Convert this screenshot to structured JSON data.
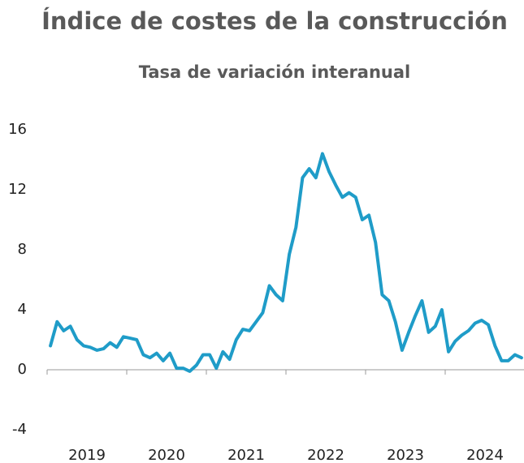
{
  "chart_data": {
    "type": "line",
    "title": "Índice de costes de la construcción",
    "subtitle": "Tasa de variación interanual",
    "categories": [
      null,
      null,
      null,
      null,
      null,
      null,
      "2019",
      null,
      null,
      null,
      null,
      null,
      null,
      null,
      null,
      null,
      null,
      null,
      "2020",
      null,
      null,
      null,
      null,
      null,
      null,
      null,
      null,
      null,
      null,
      null,
      "2021",
      null,
      null,
      null,
      null,
      null,
      null,
      null,
      null,
      null,
      null,
      null,
      "2022",
      null,
      null,
      null,
      null,
      null,
      null,
      null,
      null,
      null,
      null,
      null,
      "2023",
      null,
      null,
      null,
      null,
      null,
      null,
      null,
      null,
      null,
      null,
      null,
      "2024",
      null,
      null,
      null,
      null,
      null
    ],
    "values": [
      1.6,
      3.2,
      2.6,
      2.9,
      2.0,
      1.6,
      1.5,
      1.3,
      1.4,
      1.8,
      1.5,
      2.2,
      2.1,
      2.0,
      1.0,
      0.8,
      1.1,
      0.6,
      1.1,
      0.1,
      0.1,
      -0.1,
      0.3,
      1.0,
      1.0,
      0.1,
      1.2,
      0.7,
      2.0,
      2.7,
      2.6,
      3.2,
      3.8,
      5.6,
      5.0,
      4.6,
      7.7,
      9.5,
      12.8,
      13.4,
      12.8,
      14.4,
      13.2,
      12.3,
      11.5,
      11.8,
      11.5,
      10.0,
      10.3,
      8.5,
      5.0,
      4.6,
      3.2,
      1.3,
      2.5,
      3.6,
      4.6,
      2.5,
      2.9,
      4.0,
      1.2,
      1.9,
      2.3,
      2.6,
      3.1,
      3.3,
      3.0,
      1.6,
      0.6,
      0.6,
      1.0,
      0.8
    ],
    "color": "#1f9cc8",
    "ylim": [
      -4,
      16
    ],
    "yticks": [
      -4,
      0,
      4,
      8,
      12,
      16
    ],
    "grid": false
  }
}
